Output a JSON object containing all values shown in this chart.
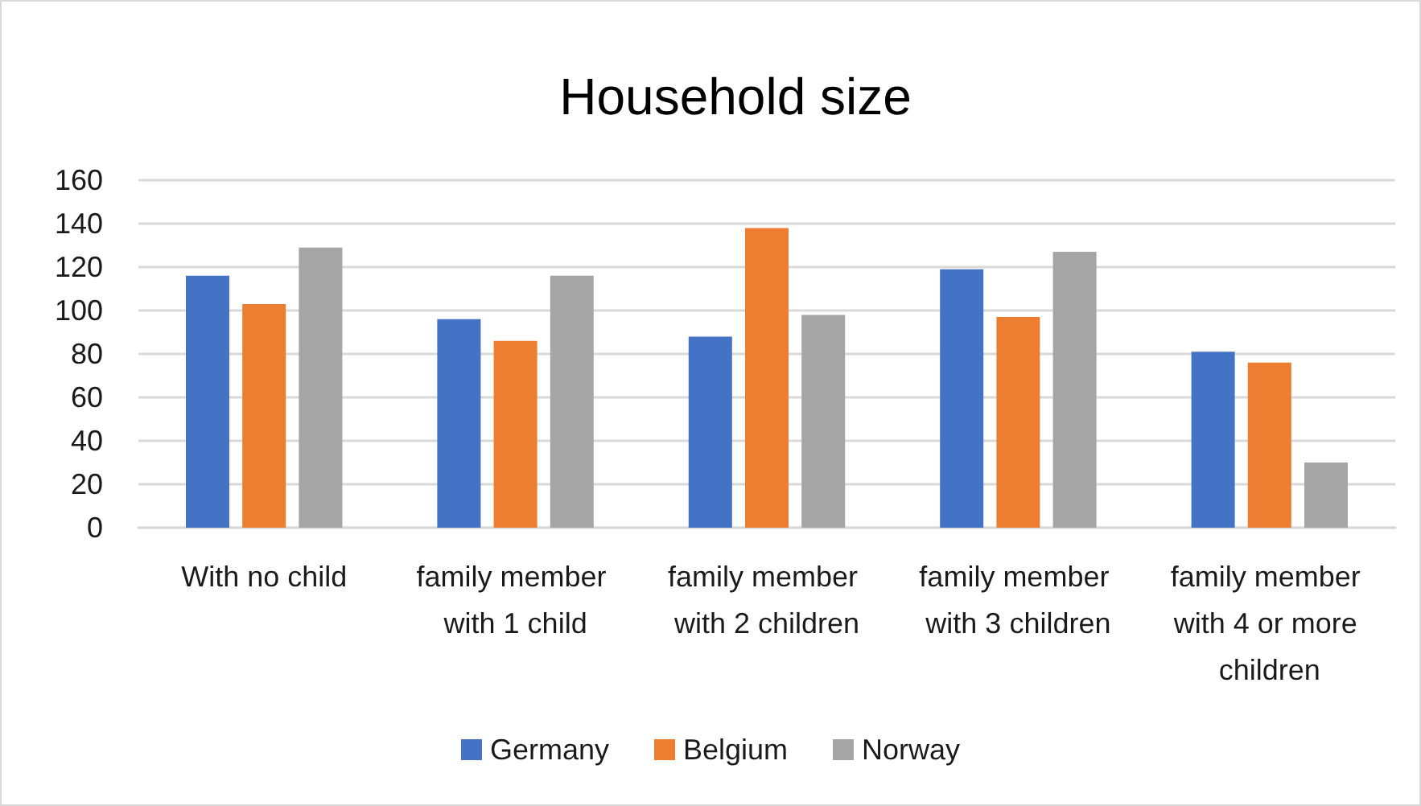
{
  "chart_data": {
    "type": "bar",
    "title": "Household size",
    "categories": [
      "With no child",
      "family member with 1 child",
      "family member with 2 children",
      "family member with 3 children",
      "family member with 4 or more children"
    ],
    "series": [
      {
        "name": "Germany",
        "color": "#4472c4",
        "values": [
          116,
          96,
          88,
          119,
          81
        ]
      },
      {
        "name": "Belgium",
        "color": "#ed7d31",
        "values": [
          103,
          86,
          138,
          97,
          76
        ]
      },
      {
        "name": "Norway",
        "color": "#a5a5a5",
        "values": [
          129,
          116,
          98,
          127,
          30
        ]
      }
    ],
    "ylim": [
      0,
      160
    ],
    "yticks": [
      0,
      20,
      40,
      60,
      80,
      100,
      120,
      140,
      160
    ],
    "grid": true,
    "legend": "bottom"
  }
}
